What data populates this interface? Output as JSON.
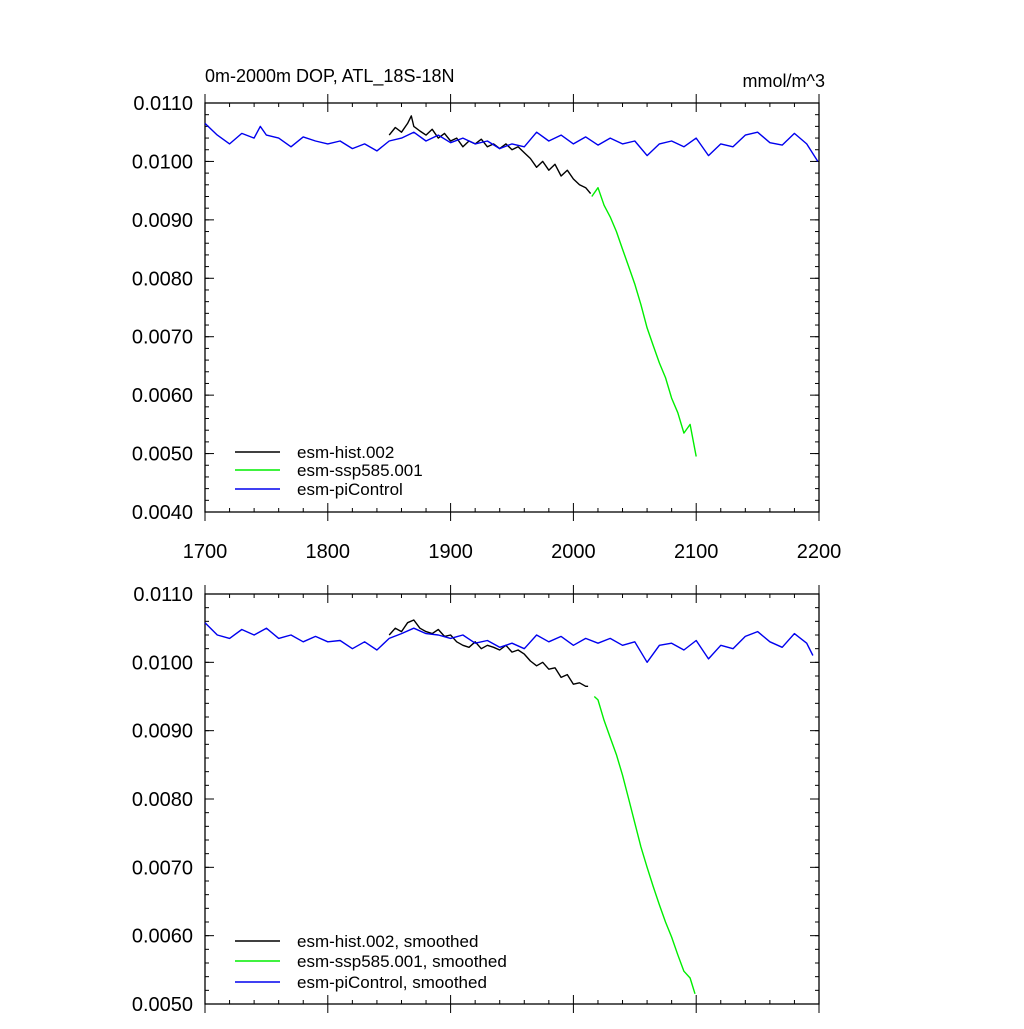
{
  "chart_data": [
    {
      "type": "line",
      "title": "0m-2000m DOP, ATL_18S-18N",
      "units": "mmol/m^3",
      "xlabel": "",
      "ylabel": "",
      "xlim": [
        1700,
        2200
      ],
      "ylim": [
        0.004,
        0.011
      ],
      "x_ticks": [
        1700,
        1800,
        1900,
        2000,
        2100,
        2200
      ],
      "x_tick_labels": [
        "1700",
        "1800",
        "1900",
        "2000",
        "2100",
        "2200"
      ],
      "y_ticks": [
        0.004,
        0.005,
        0.006,
        0.007,
        0.008,
        0.009,
        0.01,
        0.011
      ],
      "y_tick_labels": [
        "0.0040",
        "0.0050",
        "0.0060",
        "0.0070",
        "0.0080",
        "0.0090",
        "0.0100",
        "0.0110"
      ],
      "legend_position": "bottom-left",
      "series": [
        {
          "name": "esm-hist.002",
          "color": "#000000",
          "x": [
            1850,
            1855,
            1860,
            1865,
            1868,
            1870,
            1875,
            1880,
            1885,
            1890,
            1895,
            1900,
            1905,
            1910,
            1915,
            1920,
            1925,
            1930,
            1935,
            1940,
            1945,
            1950,
            1955,
            1960,
            1965,
            1970,
            1975,
            1980,
            1985,
            1990,
            1995,
            2000,
            2005,
            2010,
            2014
          ],
          "values": [
            0.01045,
            0.01058,
            0.0105,
            0.01065,
            0.01078,
            0.0106,
            0.01052,
            0.01045,
            0.01055,
            0.0104,
            0.01048,
            0.01035,
            0.0104,
            0.01025,
            0.01035,
            0.0103,
            0.01038,
            0.01025,
            0.0103,
            0.01022,
            0.0103,
            0.0102,
            0.01025,
            0.01015,
            0.01005,
            0.0099,
            0.01,
            0.00985,
            0.00995,
            0.00975,
            0.00985,
            0.0097,
            0.0096,
            0.00955,
            0.00945
          ]
        },
        {
          "name": "esm-ssp585.001",
          "color": "#00ee00",
          "x": [
            2015,
            2020,
            2025,
            2030,
            2035,
            2040,
            2045,
            2050,
            2055,
            2060,
            2065,
            2070,
            2075,
            2080,
            2085,
            2090,
            2095,
            2100
          ],
          "values": [
            0.0094,
            0.00955,
            0.00925,
            0.00905,
            0.0088,
            0.0085,
            0.0082,
            0.0079,
            0.00755,
            0.00715,
            0.00685,
            0.00655,
            0.0063,
            0.00595,
            0.0057,
            0.00535,
            0.0055,
            0.00495
          ]
        },
        {
          "name": "esm-piControl",
          "color": "#0000ee",
          "x": [
            1700,
            1710,
            1720,
            1730,
            1740,
            1745,
            1750,
            1760,
            1770,
            1780,
            1790,
            1800,
            1810,
            1820,
            1830,
            1840,
            1850,
            1860,
            1870,
            1880,
            1890,
            1900,
            1910,
            1920,
            1930,
            1940,
            1950,
            1960,
            1970,
            1980,
            1990,
            2000,
            2010,
            2020,
            2030,
            2040,
            2050,
            2060,
            2070,
            2080,
            2090,
            2100,
            2110,
            2120,
            2130,
            2140,
            2150,
            2160,
            2170,
            2180,
            2190,
            2199
          ],
          "values": [
            0.01065,
            0.01045,
            0.0103,
            0.01048,
            0.0104,
            0.0106,
            0.01045,
            0.0104,
            0.01025,
            0.01042,
            0.01035,
            0.0103,
            0.01035,
            0.01022,
            0.0103,
            0.01018,
            0.01035,
            0.0104,
            0.0105,
            0.01035,
            0.01045,
            0.01032,
            0.0104,
            0.0103,
            0.01035,
            0.01022,
            0.0103,
            0.01025,
            0.0105,
            0.01035,
            0.01045,
            0.0103,
            0.01042,
            0.01028,
            0.0104,
            0.0103,
            0.01035,
            0.0101,
            0.0103,
            0.01035,
            0.01025,
            0.0104,
            0.0101,
            0.0103,
            0.01025,
            0.01045,
            0.0105,
            0.01032,
            0.01028,
            0.01048,
            0.0103,
            0.01
          ]
        }
      ]
    },
    {
      "type": "line",
      "title": "",
      "xlabel": "",
      "ylabel": "",
      "xlim": [
        1700,
        2200
      ],
      "ylim": [
        0.005,
        0.011
      ],
      "y_ticks": [
        0.005,
        0.006,
        0.007,
        0.008,
        0.009,
        0.01,
        0.011
      ],
      "y_tick_labels": [
        "0.0050",
        "0.0060",
        "0.0070",
        "0.0080",
        "0.0090",
        "0.0100",
        "0.0110"
      ],
      "legend_position": "bottom-left",
      "series": [
        {
          "name": "esm-hist.002, smoothed",
          "color": "#000000",
          "x": [
            1850,
            1855,
            1860,
            1865,
            1870,
            1875,
            1880,
            1885,
            1890,
            1895,
            1900,
            1905,
            1910,
            1915,
            1920,
            1925,
            1930,
            1935,
            1940,
            1945,
            1950,
            1955,
            1960,
            1965,
            1970,
            1975,
            1980,
            1985,
            1990,
            1995,
            2000,
            2005,
            2010,
            2012
          ],
          "values": [
            0.0104,
            0.0105,
            0.01045,
            0.01058,
            0.01062,
            0.0105,
            0.01045,
            0.01042,
            0.01048,
            0.01038,
            0.0104,
            0.0103,
            0.01025,
            0.01022,
            0.0103,
            0.0102,
            0.01025,
            0.01022,
            0.01018,
            0.01025,
            0.01015,
            0.01018,
            0.01012,
            0.01002,
            0.00995,
            0.01,
            0.0099,
            0.00992,
            0.00978,
            0.00982,
            0.00968,
            0.0097,
            0.00965,
            0.00965
          ]
        },
        {
          "name": "esm-ssp585.001, smoothed",
          "color": "#00ee00",
          "x": [
            2017,
            2020,
            2025,
            2030,
            2035,
            2040,
            2045,
            2050,
            2055,
            2060,
            2065,
            2070,
            2075,
            2080,
            2085,
            2090,
            2095,
            2099
          ],
          "values": [
            0.0095,
            0.00945,
            0.00915,
            0.0089,
            0.00865,
            0.00835,
            0.008,
            0.00765,
            0.0073,
            0.007,
            0.00672,
            0.00645,
            0.0062,
            0.00598,
            0.00572,
            0.00548,
            0.00538,
            0.00515
          ]
        },
        {
          "name": "esm-piControl, smoothed",
          "color": "#0000ee",
          "x": [
            1700,
            1710,
            1720,
            1730,
            1740,
            1750,
            1760,
            1770,
            1780,
            1790,
            1800,
            1810,
            1820,
            1830,
            1840,
            1850,
            1860,
            1870,
            1880,
            1890,
            1900,
            1910,
            1920,
            1930,
            1940,
            1950,
            1960,
            1970,
            1980,
            1990,
            2000,
            2010,
            2020,
            2030,
            2040,
            2050,
            2060,
            2070,
            2080,
            2090,
            2100,
            2110,
            2120,
            2130,
            2140,
            2150,
            2160,
            2170,
            2180,
            2190,
            2195
          ],
          "values": [
            0.01058,
            0.0104,
            0.01035,
            0.01048,
            0.0104,
            0.0105,
            0.01035,
            0.0104,
            0.0103,
            0.01038,
            0.0103,
            0.01032,
            0.0102,
            0.0103,
            0.01018,
            0.01035,
            0.01042,
            0.0105,
            0.01042,
            0.0104,
            0.01035,
            0.0104,
            0.01028,
            0.01032,
            0.01022,
            0.01028,
            0.0102,
            0.0104,
            0.0103,
            0.01038,
            0.01025,
            0.01035,
            0.01028,
            0.01035,
            0.01025,
            0.0103,
            0.01,
            0.01025,
            0.01028,
            0.01018,
            0.01032,
            0.01005,
            0.01025,
            0.0102,
            0.01038,
            0.01045,
            0.0103,
            0.01022,
            0.01042,
            0.01028,
            0.0101
          ]
        }
      ]
    }
  ]
}
